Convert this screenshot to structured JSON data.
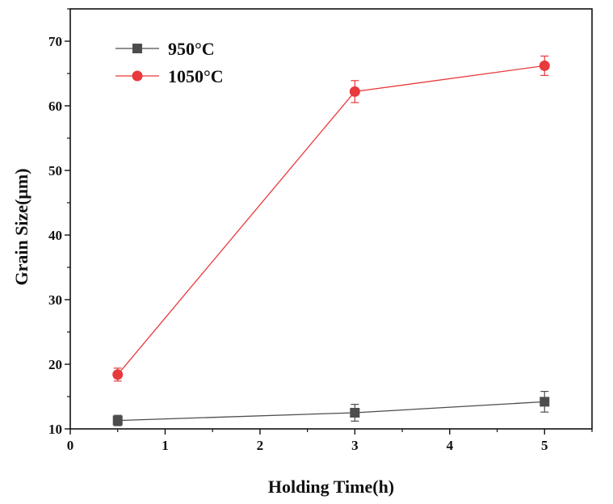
{
  "chart_data": {
    "type": "line",
    "title": "",
    "xlabel": "Holding Time(h)",
    "ylabel": "Grain Size(μm)",
    "xlim": [
      0,
      5.5
    ],
    "ylim": [
      10,
      75
    ],
    "xticks": [
      0,
      1,
      2,
      3,
      4,
      5
    ],
    "yticks": [
      10,
      20,
      30,
      40,
      50,
      60,
      70
    ],
    "legend_position": "top-left",
    "grid": false,
    "series": [
      {
        "name": "950°C",
        "color": "#4d4d4d",
        "marker": "square",
        "x": [
          0.5,
          3,
          5
        ],
        "y": [
          11.3,
          12.5,
          14.2
        ],
        "error": [
          0.8,
          1.3,
          1.6
        ]
      },
      {
        "name": "1050°C",
        "color": "#e8393b",
        "marker": "circle",
        "x": [
          0.5,
          3,
          5
        ],
        "y": [
          18.4,
          62.2,
          66.2
        ],
        "error": [
          1.0,
          1.7,
          1.5
        ]
      }
    ]
  }
}
